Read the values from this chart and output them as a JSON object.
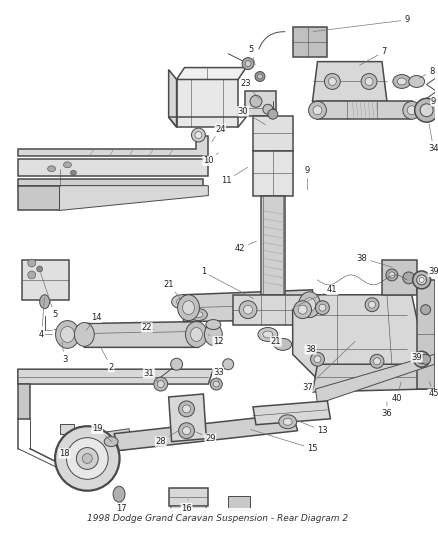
{
  "title": "1998 Dodge Grand Caravan Suspension - Rear Diagram 2",
  "bg_color": "#f5f5f5",
  "line_color": "#4a4a4a",
  "label_color": "#222222",
  "fig_width": 4.38,
  "fig_height": 5.33,
  "dpi": 100
}
